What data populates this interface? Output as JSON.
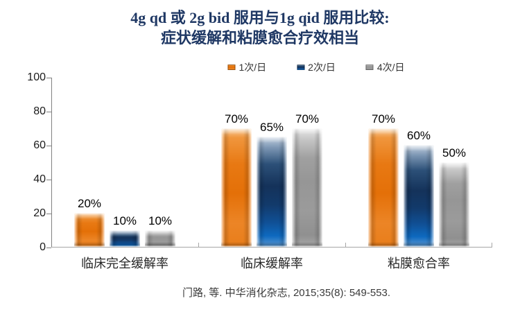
{
  "title": {
    "line1": "4g qd 或 2g bid 服用与1g qid 服用比较:",
    "line2": "症状缓解和粘膜愈合疗效相当"
  },
  "citation": "门路, 等. 中华消化杂志, 2015;35(8): 549-553.",
  "colors": {
    "title_navy": "#1f3864",
    "series_orange": "#e87712",
    "series_blue": "#16365c",
    "series_gray": "#999999",
    "y_axis_line": "#808080",
    "x_axis_line": "#a6a6a6"
  },
  "chart_data": {
    "type": "bar",
    "title": "4g qd 或 2g bid 服用与1g qid 服用比较: 症状缓解和粘膜愈合疗效相当",
    "categories": [
      "临床完全缓解率",
      "临床缓解率",
      "粘膜愈合率"
    ],
    "series": [
      {
        "name": "1次/日",
        "color": "#e87712",
        "values": [
          20,
          70,
          70
        ]
      },
      {
        "name": "2次/日",
        "color": "#16365c",
        "values": [
          10,
          65,
          60
        ]
      },
      {
        "name": "4次/日",
        "color": "#999999",
        "values": [
          10,
          70,
          50
        ]
      }
    ],
    "value_suffix": "%",
    "ylim": [
      0,
      100
    ],
    "yticks": [
      0,
      20,
      40,
      60,
      80,
      100
    ],
    "xlabel": "",
    "ylabel": "",
    "grid": false,
    "legend_position": "top"
  }
}
